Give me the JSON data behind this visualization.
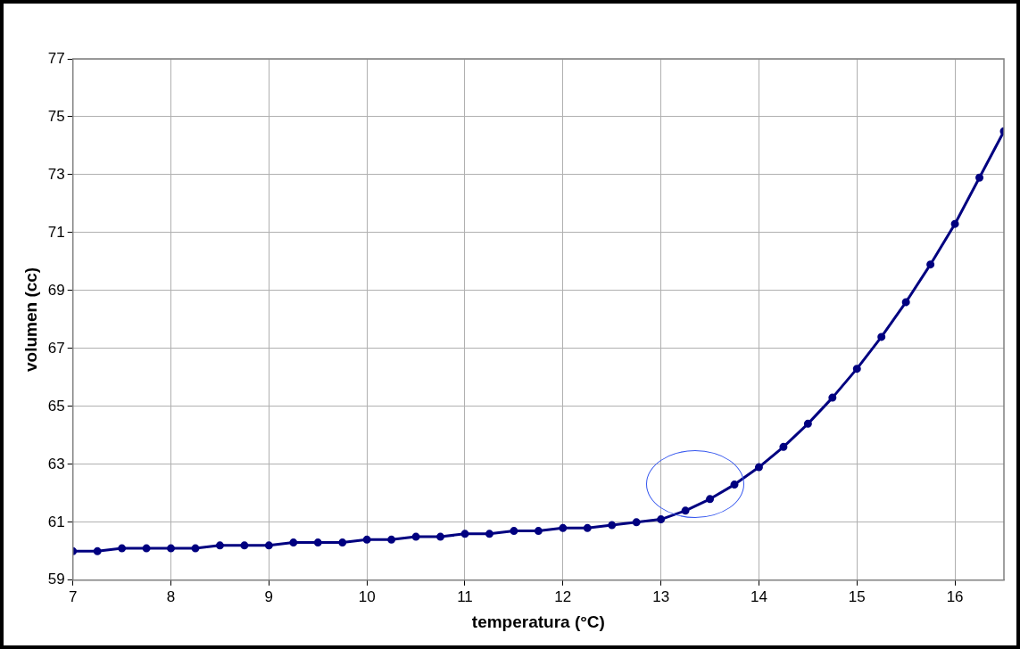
{
  "chart_data": {
    "type": "line",
    "xlabel": "temperatura (°C)",
    "ylabel": "volumen (cc)",
    "xlim": [
      7,
      16.5
    ],
    "xticks": [
      7,
      8,
      9,
      10,
      11,
      12,
      13,
      14,
      15,
      16
    ],
    "ylim": [
      59,
      77
    ],
    "yticks": [
      59,
      61,
      63,
      65,
      67,
      69,
      71,
      73,
      75,
      77
    ],
    "grid": true,
    "legend": false,
    "marker": "circle",
    "line_style": "solid",
    "x": [
      7,
      7.25,
      7.5,
      7.75,
      8,
      8.25,
      8.5,
      8.75,
      9,
      9.25,
      9.5,
      9.75,
      10,
      10.25,
      10.5,
      10.75,
      11,
      11.25,
      11.5,
      11.75,
      12,
      12.25,
      12.5,
      12.75,
      13,
      13.25,
      13.5,
      13.75,
      14,
      14.25,
      14.5,
      14.75,
      15,
      15.25,
      15.5,
      15.75,
      16,
      16.25,
      16.5
    ],
    "series": [
      {
        "color": "#000080",
        "values": [
          60.0,
          60.0,
          60.1,
          60.1,
          60.1,
          60.1,
          60.2,
          60.2,
          60.2,
          60.3,
          60.3,
          60.3,
          60.4,
          60.4,
          60.5,
          60.5,
          60.6,
          60.6,
          60.7,
          60.7,
          60.8,
          60.8,
          60.9,
          61.0,
          61.1,
          61.4,
          61.8,
          62.3,
          62.9,
          63.6,
          64.4,
          65.3,
          66.3,
          67.4,
          68.6,
          69.9,
          71.3,
          72.9,
          74.5
        ]
      }
    ]
  }
}
